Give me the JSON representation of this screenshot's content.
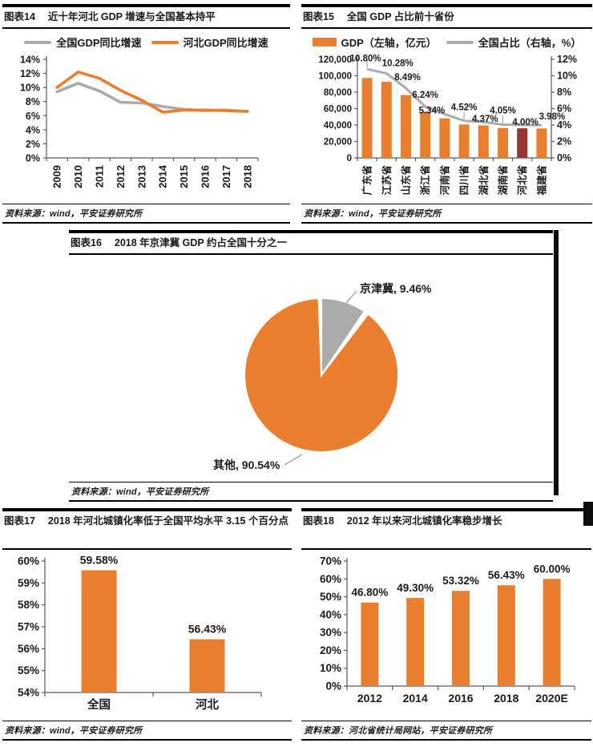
{
  "colors": {
    "orange": "#E87E2E",
    "gray": "#ABABAB",
    "dark_red": "#953735",
    "axis": "#595959",
    "text": "#1a1a1a",
    "leader": "#999999"
  },
  "chart_data": [
    {
      "id": "fig14",
      "type": "line",
      "fig_label": "图表14",
      "title": "近十年河北 GDP 增速与全国基本持平",
      "categories": [
        "2009",
        "2010",
        "2011",
        "2012",
        "2013",
        "2014",
        "2015",
        "2016",
        "2017",
        "2018"
      ],
      "series": [
        {
          "name": "全国GDP同比增速",
          "color_key": "gray",
          "values": [
            9.4,
            10.6,
            9.5,
            7.9,
            7.8,
            7.3,
            6.9,
            6.7,
            6.8,
            6.6
          ]
        },
        {
          "name": "河北GDP同比增速",
          "color_key": "orange",
          "values": [
            10.0,
            12.2,
            11.3,
            9.6,
            8.2,
            6.5,
            6.8,
            6.8,
            6.7,
            6.6
          ]
        }
      ],
      "ylim": [
        0,
        14
      ],
      "ytick_step": 2,
      "ytick_suffix": "%",
      "legend_position": "top",
      "grid": false,
      "source": "资料来源：wind，平安证券研究所"
    },
    {
      "id": "fig15",
      "type": "bar-line",
      "fig_label": "图表15",
      "title": "全国 GDP 占比前十省份",
      "categories": [
        "广东省",
        "江苏省",
        "山东省",
        "浙江省",
        "河南省",
        "四川省",
        "湖北省",
        "湖南省",
        "河北省",
        "福建省"
      ],
      "bar_series": {
        "name": "GDP（左轴，亿元）",
        "values": [
          97278,
          92595,
          76470,
          56197,
          48056,
          40678,
          39367,
          36426,
          36010,
          35804
        ],
        "highlight_index": 8,
        "highlight_color_key": "dark_red"
      },
      "line_series": {
        "name": "全国占比（右轴，%）",
        "values": [
          10.8,
          10.28,
          8.49,
          6.24,
          5.34,
          4.52,
          4.37,
          4.05,
          4.0,
          3.98
        ],
        "labels": [
          "10.80%",
          "10.28%",
          "8.49%",
          "6.24%",
          "5.34%",
          "4.52%",
          "4.37%",
          "4.05%",
          "4.00%",
          "3.98%"
        ]
      },
      "left_ylim": [
        0,
        120000
      ],
      "left_tick_step": 20000,
      "right_ylim": [
        0,
        12
      ],
      "right_tick_step": 2,
      "legend_position": "top",
      "grid": false,
      "source": "资料来源：wind，平安证券研究所"
    },
    {
      "id": "fig16",
      "type": "pie",
      "fig_label": "图表16",
      "title": "2018 年京津冀 GDP 约占全国十分之一",
      "slices": [
        {
          "name": "京津冀",
          "value": 9.46,
          "label": "京津冀, 9.46%",
          "color_key": "gray"
        },
        {
          "name": "其他",
          "value": 90.54,
          "label": "其他, 90.54%",
          "color_key": "orange"
        }
      ],
      "source": "资料来源：wind，平安证券研究所"
    },
    {
      "id": "fig17",
      "type": "bar",
      "fig_label": "图表17",
      "title": "2018 年河北城镇化率低于全国平均水平 3.15 个百分点",
      "categories": [
        "全国",
        "河北"
      ],
      "values": [
        59.58,
        56.43
      ],
      "labels": [
        "59.58%",
        "56.43%"
      ],
      "ylim": [
        54,
        60
      ],
      "ytick_step": 1,
      "ytick_suffix": "%",
      "grid": false,
      "source": "资料来源：wind，平安证券研究所"
    },
    {
      "id": "fig18",
      "type": "bar",
      "fig_label": "图表18",
      "title": "2012 年以来河北城镇化率稳步增长",
      "categories": [
        "2012",
        "2014",
        "2016",
        "2018",
        "2020E"
      ],
      "values": [
        46.8,
        49.3,
        53.32,
        56.43,
        60.0
      ],
      "labels": [
        "46.80%",
        "49.30%",
        "53.32%",
        "56.43%",
        "60.00%"
      ],
      "ylim": [
        0,
        70
      ],
      "ytick_step": 10,
      "ytick_suffix": "%",
      "grid": false,
      "source": "资料来源：河北省统计局网站，平安证券研究所"
    }
  ]
}
